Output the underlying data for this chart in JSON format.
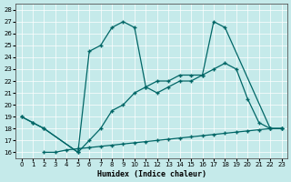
{
  "xlabel": "Humidex (Indice chaleur)",
  "xlim": [
    -0.5,
    23.5
  ],
  "ylim": [
    15.5,
    28.5
  ],
  "yticks": [
    16,
    17,
    18,
    19,
    20,
    21,
    22,
    23,
    24,
    25,
    26,
    27,
    28
  ],
  "xticks": [
    0,
    1,
    2,
    3,
    4,
    5,
    6,
    7,
    8,
    9,
    10,
    11,
    12,
    13,
    14,
    15,
    16,
    17,
    18,
    19,
    20,
    21,
    22,
    23
  ],
  "bg_color": "#c5eaea",
  "line_color": "#006666",
  "line1_x": [
    0,
    1,
    2,
    5,
    6,
    7,
    8,
    9,
    10,
    11,
    12,
    13,
    14,
    15,
    16,
    17,
    18,
    22,
    23
  ],
  "line1_y": [
    19,
    18.5,
    18,
    16,
    24.5,
    25,
    26.5,
    27,
    26.5,
    21.5,
    22,
    22,
    22.5,
    22.5,
    22.5,
    27,
    26.5,
    18,
    18
  ],
  "line2_x": [
    0,
    1,
    2,
    5,
    6,
    7,
    8,
    9,
    10,
    11,
    12,
    13,
    14,
    15,
    16,
    17,
    18,
    19,
    20,
    21,
    22,
    23
  ],
  "line2_y": [
    19,
    18.5,
    18,
    16,
    17,
    18,
    19.5,
    20,
    21,
    21.5,
    21,
    21.5,
    22,
    22,
    22.5,
    23,
    23.5,
    23,
    20.5,
    18.5,
    18,
    18
  ],
  "line3_x": [
    2,
    3,
    4,
    5,
    6,
    7,
    8,
    9,
    10,
    11,
    12,
    13,
    14,
    15,
    16,
    17,
    18,
    19,
    20,
    21,
    22,
    23
  ],
  "line3_y": [
    16.0,
    16.0,
    16.2,
    16.3,
    16.4,
    16.5,
    16.6,
    16.7,
    16.8,
    16.9,
    17.0,
    17.1,
    17.2,
    17.3,
    17.4,
    17.5,
    17.6,
    17.7,
    17.8,
    17.9,
    18.0,
    18.0
  ]
}
